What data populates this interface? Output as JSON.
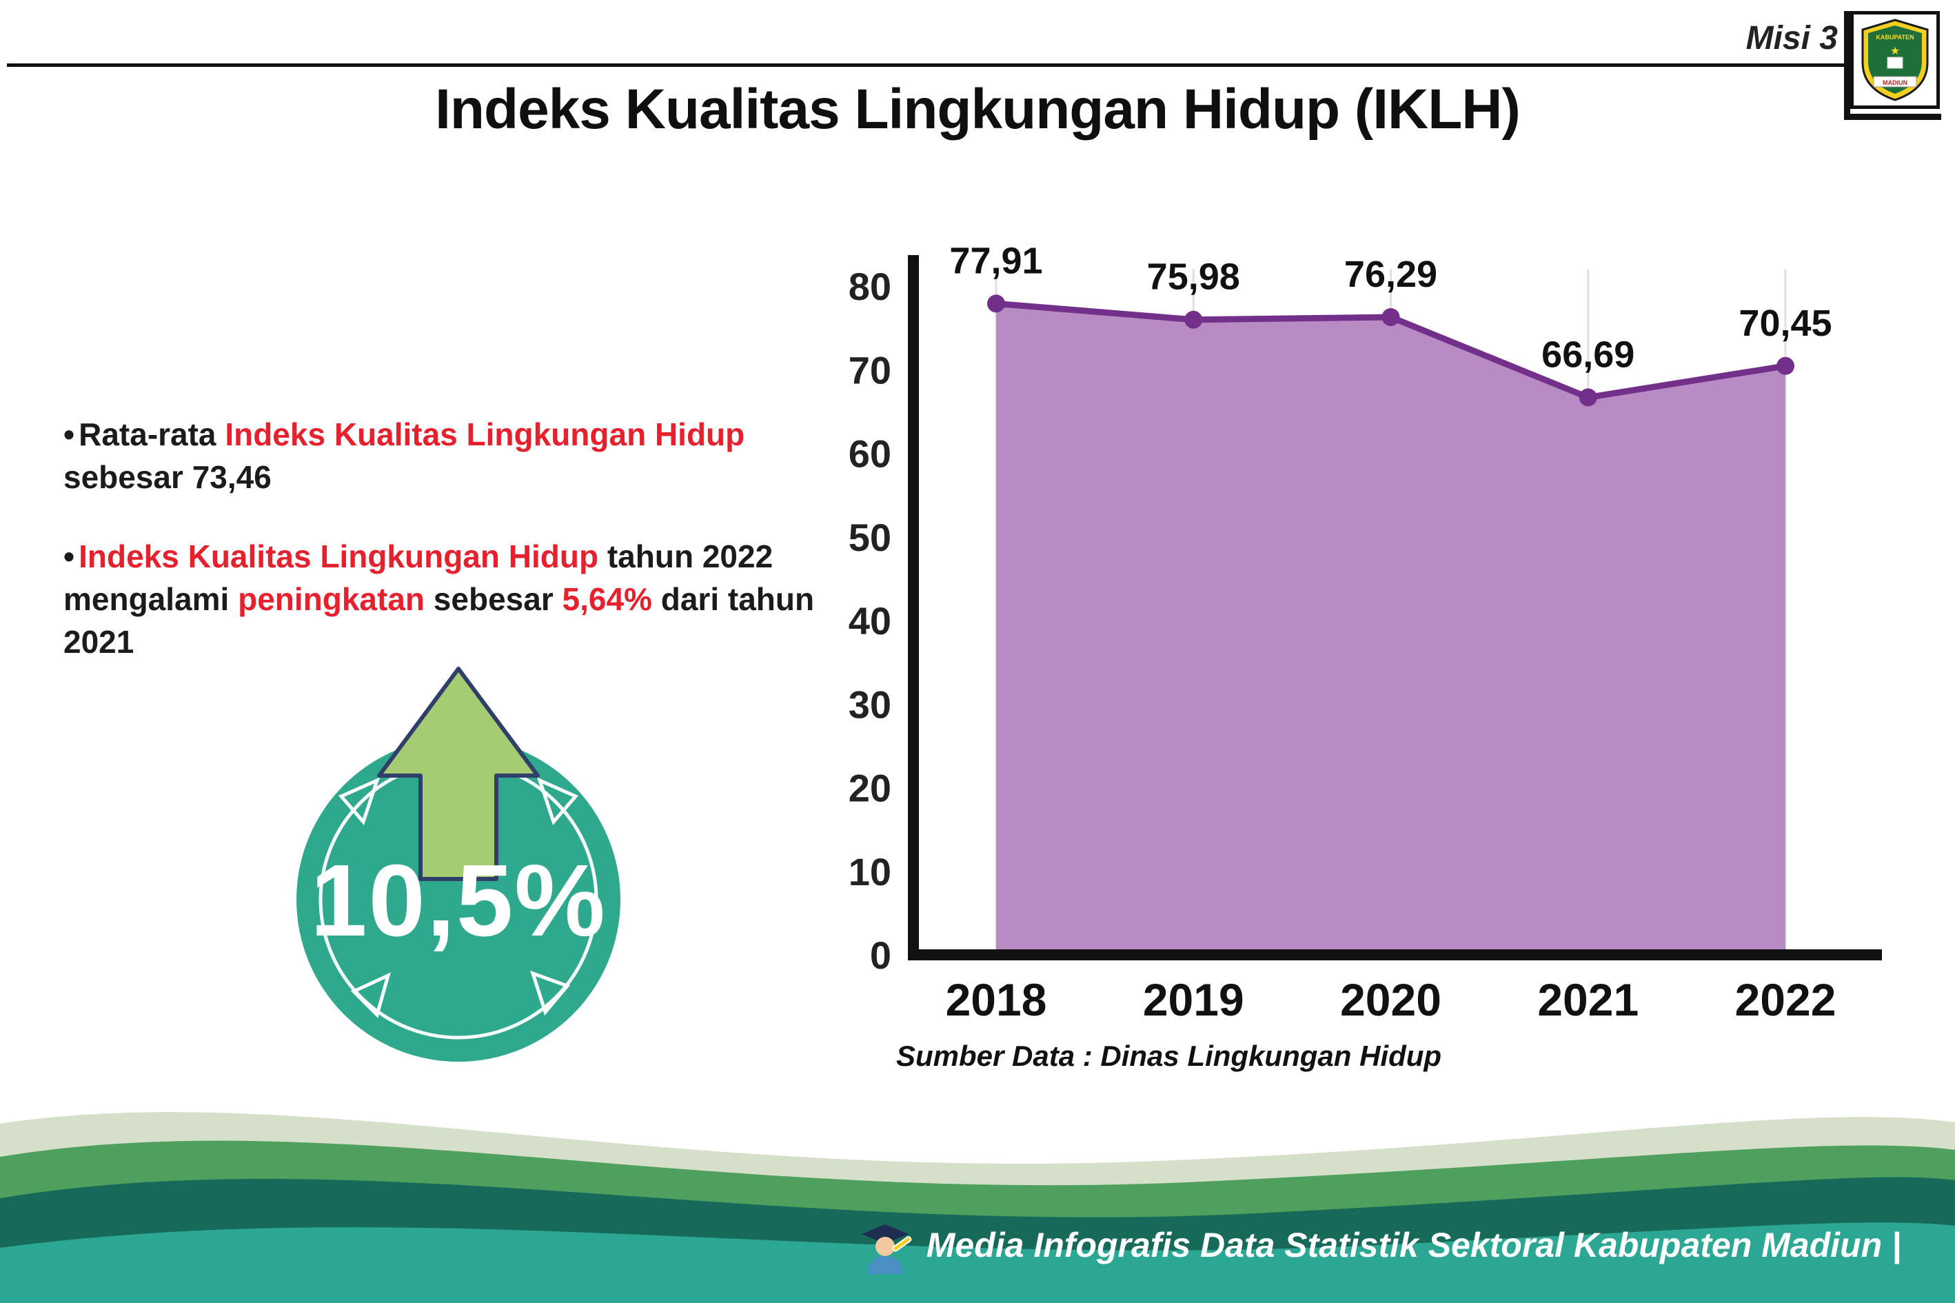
{
  "header": {
    "misi": "Misi 3",
    "title": "Indeks Kualitas Lingkungan Hidup (IKLH)",
    "logo_top": "KABUPATEN",
    "logo_bottom": "MADIUN"
  },
  "bullets": [
    {
      "segments": [
        {
          "text": "Rata-rata ",
          "style": "dark"
        },
        {
          "text": "Indeks Kualitas Lingkungan Hidup",
          "style": "red"
        },
        {
          "text": " sebesar 73,46",
          "style": "dark"
        }
      ]
    },
    {
      "segments": [
        {
          "text": "Indeks Kualitas Lingkungan Hidup",
          "style": "red"
        },
        {
          "text": " tahun 2022 mengalami ",
          "style": "dark"
        },
        {
          "text": "peningkatan",
          "style": "red"
        },
        {
          "text": " sebesar ",
          "style": "dark"
        },
        {
          "text": "5,64%",
          "style": "red"
        },
        {
          "text": " dari tahun 2021",
          "style": "dark"
        }
      ]
    }
  ],
  "badge": {
    "value": "10,5%",
    "circle_color": "#2fa98e",
    "arrow_color": "#a5cc72",
    "arrow_outline": "#2f3f69"
  },
  "chart_data": {
    "type": "area",
    "title": "Indeks Kualitas Lingkungan Hidup (IKLH)",
    "categories": [
      "2018",
      "2019",
      "2020",
      "2021",
      "2022"
    ],
    "values": [
      77.91,
      75.98,
      76.29,
      66.69,
      70.45
    ],
    "point_labels": [
      "77,91",
      "75,98",
      "76,29",
      "66,69",
      "70,45"
    ],
    "ylim": [
      0,
      80
    ],
    "yticks": [
      0,
      10,
      20,
      30,
      40,
      50,
      60,
      70,
      80
    ],
    "grid": "faint-vertical",
    "legend": "none",
    "area_color": "#b88bc5",
    "line_color": "#73308a",
    "source": "Sumber Data : Dinas Lingkungan Hidup"
  },
  "footer": {
    "text": "Media Infografis Data Statistik Sektoral Kabupaten Madiun |"
  }
}
